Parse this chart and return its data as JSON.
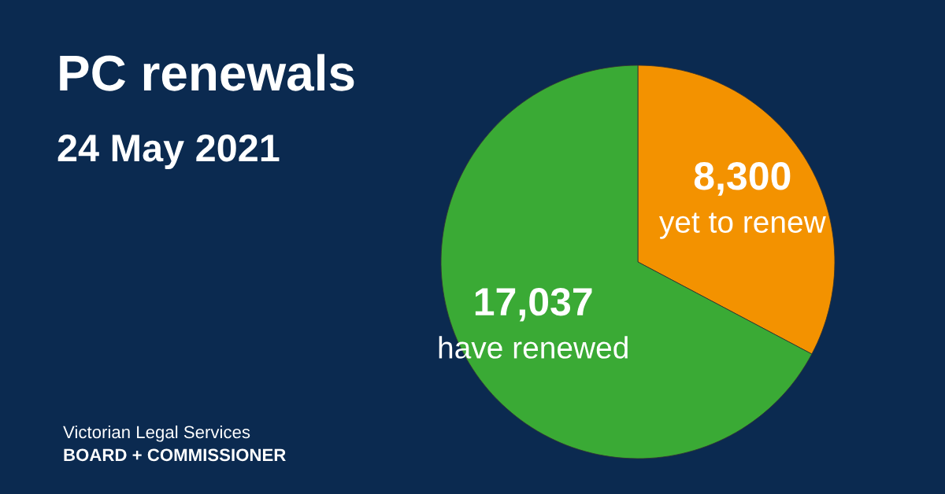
{
  "chart_data": {
    "type": "pie",
    "title": "PC renewals",
    "subtitle": "24 May 2021",
    "categories": [
      "yet to renew",
      "have renewed"
    ],
    "values": [
      8300,
      17037
    ],
    "value_labels": [
      "8,300",
      "17,037"
    ],
    "colors": [
      "#f39200",
      "#3aaa35"
    ],
    "annotations": [
      "Victorian Legal Services",
      "BOARD + COMMISSIONER"
    ]
  }
}
